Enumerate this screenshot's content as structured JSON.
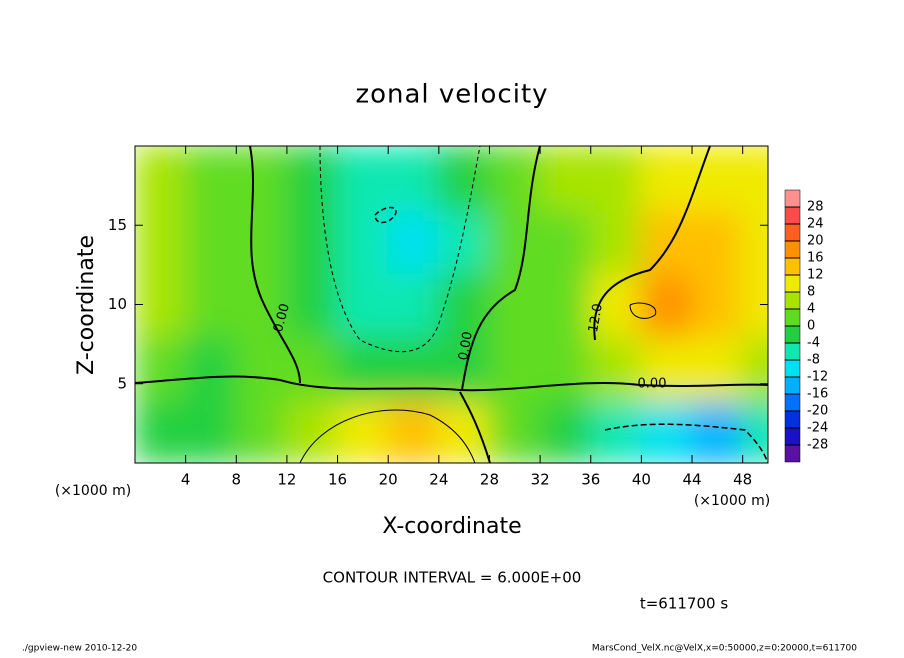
{
  "chart_data": {
    "type": "contour",
    "title": "zonal velocity",
    "xlabel": "X-coordinate",
    "ylabel": "Z-coordinate",
    "xunit": "(×1000 m)",
    "yunit": "(×1000 m)",
    "xlim": [
      0,
      50
    ],
    "ylim": [
      0,
      20
    ],
    "xticks": [
      4,
      8,
      12,
      16,
      20,
      24,
      28,
      32,
      36,
      40,
      44,
      48
    ],
    "yticks": [
      5,
      10,
      15
    ],
    "x": [
      2,
      6,
      10,
      14,
      18,
      22,
      26,
      30,
      34,
      38,
      42,
      46,
      50
    ],
    "z": [
      2,
      6,
      10,
      14,
      18
    ],
    "values": [
      [
        -4,
        -2,
        2,
        4,
        10,
        14,
        8,
        0,
        -2,
        -6,
        -12,
        -14,
        -8
      ],
      [
        0,
        -2,
        2,
        0,
        -4,
        -4,
        -2,
        0,
        2,
        6,
        8,
        8,
        6
      ],
      [
        6,
        2,
        0,
        -2,
        -6,
        -8,
        -4,
        0,
        2,
        10,
        16,
        14,
        8
      ],
      [
        6,
        2,
        0,
        -4,
        -8,
        -10,
        -6,
        0,
        2,
        6,
        12,
        14,
        10
      ],
      [
        4,
        2,
        0,
        -2,
        -6,
        -6,
        -4,
        2,
        4,
        6,
        10,
        10,
        8
      ]
    ],
    "levels": [
      -28,
      -24,
      -20,
      -16,
      -12,
      -8,
      -4,
      0,
      4,
      8,
      12,
      16,
      20,
      24,
      28
    ],
    "colors": [
      "#5a10a0",
      "#1a10c8",
      "#0030e0",
      "#0070ff",
      "#00b0ff",
      "#00e0f0",
      "#10e8b0",
      "#20d040",
      "#60dc20",
      "#a8e400",
      "#f0ea00",
      "#ffc000",
      "#ff9000",
      "#ff6020",
      "#ff4a4a",
      "#ff9090"
    ],
    "contour_labels": [
      "0.00",
      "0.00",
      "0.00",
      "12.0"
    ],
    "contour_interval": "CONTOUR INTERVAL = 6.000E+00",
    "time_label": "t=611700 s",
    "footer_left": "./gpview-new  2010-12-20",
    "footer_right": "MarsCond_VelX.nc@VelX,x=0:50000,z=0:20000,t=611700"
  }
}
